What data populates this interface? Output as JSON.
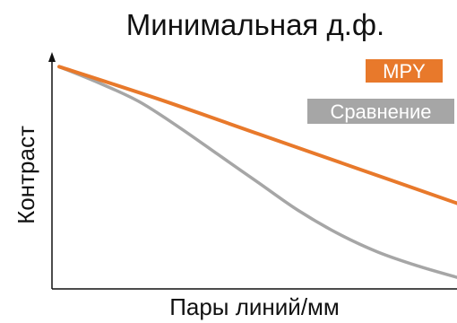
{
  "chart_data": {
    "type": "line",
    "title": "Минимальная д.ф.",
    "xlabel": "Пары линий/мм",
    "ylabel": "Контраст",
    "x_ticks_shown": false,
    "y_ticks_shown": false,
    "grid": false,
    "legend_placement": "top-right",
    "xlim": [
      0,
      1
    ],
    "ylim": [
      0,
      1
    ],
    "series": [
      {
        "name": "MPY",
        "color": "#E8792B",
        "x": [
          0,
          0.25,
          0.5,
          0.75,
          1
        ],
        "y": [
          0.96,
          0.82,
          0.67,
          0.52,
          0.37
        ]
      },
      {
        "name": "Сравнение",
        "color": "#A6A6A6",
        "x": [
          0,
          0.1,
          0.2,
          0.3,
          0.4,
          0.5,
          0.6,
          0.7,
          0.8,
          0.9,
          1
        ],
        "y": [
          0.96,
          0.89,
          0.81,
          0.7,
          0.58,
          0.46,
          0.34,
          0.24,
          0.16,
          0.1,
          0.05
        ]
      }
    ]
  }
}
